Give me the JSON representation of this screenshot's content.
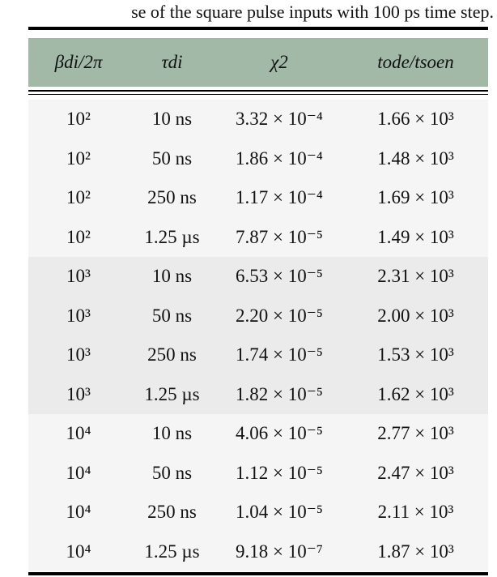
{
  "caption": "se of the square pulse inputs with 100 ps time step.",
  "colors": {
    "header_bg": "#a2b9a8",
    "group_a_bg": "#f5f5f5",
    "group_b_bg": "#ebebeb"
  },
  "table": {
    "headers": [
      "βdi/2π",
      "τdi",
      "χ2",
      "tode/tsoen"
    ],
    "rows": [
      {
        "beta": "10²",
        "tau": "10 ns",
        "chi2": "3.32 × 10⁻⁴",
        "ratio": "1.66 × 10³",
        "group": 0
      },
      {
        "beta": "10²",
        "tau": "50 ns",
        "chi2": "1.86 × 10⁻⁴",
        "ratio": "1.48 × 10³",
        "group": 0
      },
      {
        "beta": "10²",
        "tau": "250 ns",
        "chi2": "1.17 × 10⁻⁴",
        "ratio": "1.69 × 10³",
        "group": 0
      },
      {
        "beta": "10²",
        "tau": "1.25 µs",
        "chi2": "7.87 × 10⁻⁵",
        "ratio": "1.49 × 10³",
        "group": 0
      },
      {
        "beta": "10³",
        "tau": "10 ns",
        "chi2": "6.53 × 10⁻⁵",
        "ratio": "2.31 × 10³",
        "group": 1
      },
      {
        "beta": "10³",
        "tau": "50 ns",
        "chi2": "2.20 × 10⁻⁵",
        "ratio": "2.00 × 10³",
        "group": 1
      },
      {
        "beta": "10³",
        "tau": "250 ns",
        "chi2": "1.74 × 10⁻⁵",
        "ratio": "1.53 × 10³",
        "group": 1
      },
      {
        "beta": "10³",
        "tau": "1.25 µs",
        "chi2": "1.82 × 10⁻⁵",
        "ratio": "1.62 × 10³",
        "group": 1
      },
      {
        "beta": "10⁴",
        "tau": "10 ns",
        "chi2": "4.06 × 10⁻⁵",
        "ratio": "2.77 × 10³",
        "group": 2
      },
      {
        "beta": "10⁴",
        "tau": "50 ns",
        "chi2": "1.12 × 10⁻⁵",
        "ratio": "2.47 × 10³",
        "group": 2
      },
      {
        "beta": "10⁴",
        "tau": "250 ns",
        "chi2": "1.04 × 10⁻⁵",
        "ratio": "2.11 × 10³",
        "group": 2
      },
      {
        "beta": "10⁴",
        "tau": "1.25 µs",
        "chi2": "9.18 × 10⁻⁷",
        "ratio": "1.87 × 10³",
        "group": 2
      }
    ]
  }
}
